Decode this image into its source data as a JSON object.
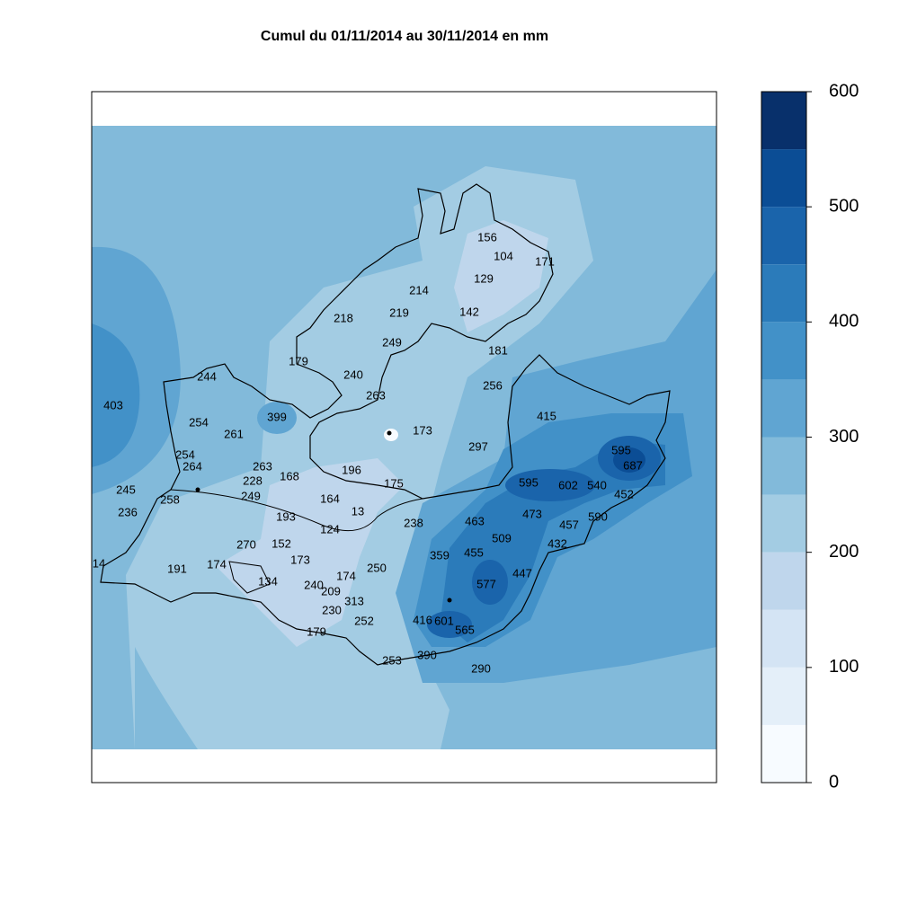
{
  "title": "Cumul du 01/11/2014 au 30/11/2014 en mm",
  "colorbar": {
    "lim": [
      0,
      600
    ],
    "ticks": [
      0,
      100,
      200,
      300,
      400,
      500,
      600
    ],
    "breaks": [
      0,
      50,
      100,
      150,
      200,
      250,
      300,
      350,
      400,
      450,
      500,
      550,
      600
    ],
    "colors": [
      "#f7fbff",
      "#e4eff9",
      "#d4e4f4",
      "#bfd6ec",
      "#a3cce3",
      "#82bada",
      "#60a5d2",
      "#4291c8",
      "#2b7bba",
      "#1a64ab",
      "#0b4d95",
      "#08306b"
    ]
  },
  "stations": [
    156,
    104,
    171,
    129,
    214,
    218,
    219,
    142,
    249,
    181,
    179,
    244,
    240,
    263,
    256,
    403,
    399,
    415,
    254,
    261,
    173,
    297,
    595,
    254,
    264,
    263,
    228,
    168,
    196,
    687,
    595,
    602,
    540,
    175,
    245,
    249,
    258,
    164,
    452,
    236,
    193,
    13,
    473,
    590,
    238,
    463,
    124,
    457,
    270,
    152,
    509,
    432,
    359,
    455,
    173,
    14,
    191,
    174,
    250,
    447,
    174,
    134,
    240,
    577,
    209,
    313,
    230,
    252,
    416,
    601,
    565,
    179,
    390,
    253,
    290
  ]
}
